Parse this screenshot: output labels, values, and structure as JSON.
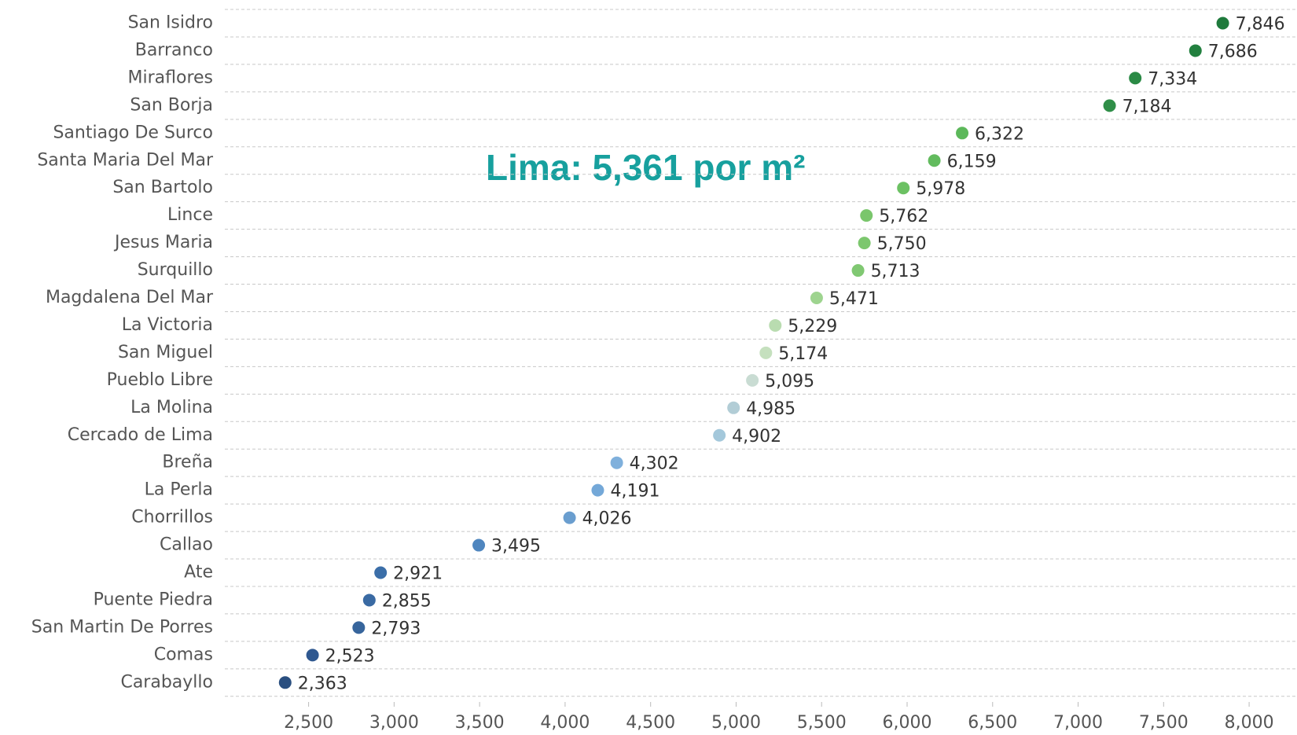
{
  "chart_data": {
    "type": "dot",
    "annotation": "Lima: 5,361 por m²",
    "categories": [
      "San Isidro",
      "Barranco",
      "Miraflores",
      "San Borja",
      "Santiago De Surco",
      "Santa Maria Del Mar",
      "San Bartolo",
      "Lince",
      "Jesus Maria",
      "Surquillo",
      "Magdalena Del Mar",
      "La Victoria",
      "San Miguel",
      "Pueblo Libre",
      "La Molina",
      "Cercado de Lima",
      "Breña",
      "La Perla",
      "Chorrillos",
      "Callao",
      "Ate",
      "Puente Piedra",
      "San Martin De Porres",
      "Comas",
      "Carabayllo"
    ],
    "values": [
      7846,
      7686,
      7334,
      7184,
      6322,
      6159,
      5978,
      5762,
      5750,
      5713,
      5471,
      5229,
      5174,
      5095,
      4985,
      4902,
      4302,
      4191,
      4026,
      3495,
      2921,
      2855,
      2793,
      2523,
      2363
    ],
    "value_labels": [
      "7,846",
      "7,686",
      "7,334",
      "7,184",
      "6,322",
      "6,159",
      "5,978",
      "5,762",
      "5,750",
      "5,713",
      "5,471",
      "5,229",
      "5,174",
      "5,095",
      "4,985",
      "4,902",
      "4,302",
      "4,191",
      "4,026",
      "3,495",
      "2,921",
      "2,855",
      "2,793",
      "2,523",
      "2,363"
    ],
    "colors": [
      "#1f7a3c",
      "#22803f",
      "#2a8a45",
      "#2f8e48",
      "#5cb85a",
      "#62bb5e",
      "#6cc163",
      "#7ac66c",
      "#7cc76e",
      "#80c872",
      "#9ed48f",
      "#b9dcb0",
      "#c5e0be",
      "#c9dcd3",
      "#b2cdd6",
      "#a4c8db",
      "#7fb0dc",
      "#74a8d8",
      "#6a9ecf",
      "#4f86bf",
      "#3b6ea8",
      "#3a6aa3",
      "#37659c",
      "#2f5890",
      "#2a4f80"
    ],
    "xlim": [
      2010,
      8280
    ],
    "xticks": [
      {
        "value": 2500,
        "label": "2,500"
      },
      {
        "value": 3000,
        "label": "3,000"
      },
      {
        "value": 3500,
        "label": "3,500"
      },
      {
        "value": 4000,
        "label": "4,000"
      },
      {
        "value": 4500,
        "label": "4,500"
      },
      {
        "value": 5000,
        "label": "5,000"
      },
      {
        "value": 5500,
        "label": "5,500"
      },
      {
        "value": 6000,
        "label": "6,000"
      },
      {
        "value": 6500,
        "label": "6,500"
      },
      {
        "value": 7000,
        "label": "7,000"
      },
      {
        "value": 7500,
        "label": "7,500"
      },
      {
        "value": 8000,
        "label": "8,000"
      }
    ]
  }
}
